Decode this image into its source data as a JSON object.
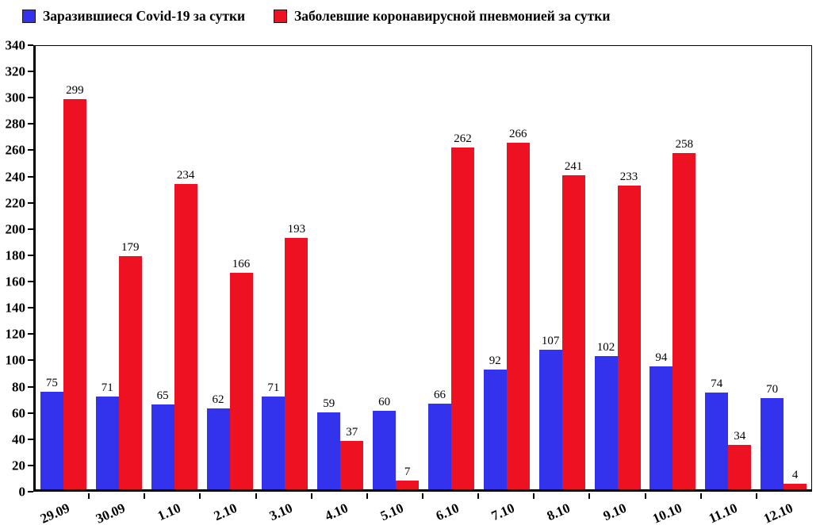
{
  "legend": [
    {
      "label": "Заразившиеся Covid-19 за сутки",
      "color": "#3333ee"
    },
    {
      "label": "Заболевшие коронавирусной пневмонией за сутки",
      "color": "#ee1122"
    }
  ],
  "chart_data": {
    "type": "bar",
    "title": "",
    "xlabel": "",
    "ylabel": "",
    "categories": [
      "29.09",
      "30.09",
      "1.10",
      "2.10",
      "3.10",
      "4.10",
      "5.10",
      "6.10",
      "7.10",
      "8.10",
      "9.10",
      "10.10",
      "11.10",
      "12.10"
    ],
    "series": [
      {
        "name": "Заразившиеся Covid-19 за сутки",
        "color": "#3333ee",
        "values": [
          75,
          71,
          65,
          62,
          71,
          59,
          60,
          66,
          92,
          107,
          102,
          94,
          74,
          70
        ]
      },
      {
        "name": "Заболевшие коронавирусной пневмонией за сутки",
        "color": "#ee1122",
        "values": [
          299,
          179,
          234,
          166,
          193,
          37,
          7,
          262,
          266,
          241,
          233,
          258,
          34,
          4
        ]
      }
    ],
    "ylim": [
      0,
      340
    ],
    "yticks": [
      0,
      20,
      40,
      60,
      80,
      100,
      120,
      140,
      160,
      180,
      200,
      220,
      240,
      260,
      280,
      300,
      320,
      340
    ],
    "grid": false,
    "legend_position": "top-left",
    "value_labels": true
  }
}
